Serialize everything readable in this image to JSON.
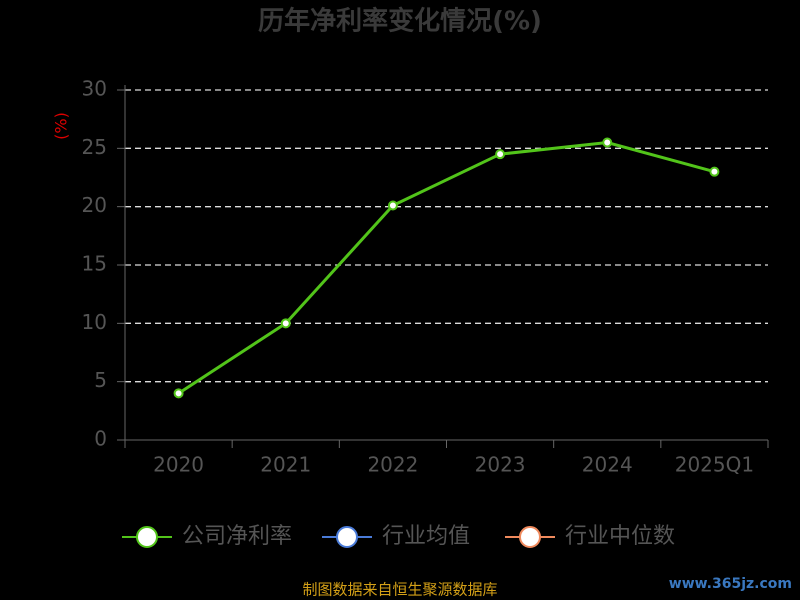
{
  "chart_data": {
    "type": "line",
    "title": "历年净利率变化情况(%)",
    "y_label": "(%)",
    "categories": [
      "2020",
      "2021",
      "2022",
      "2023",
      "2024",
      "2025Q1"
    ],
    "series": [
      {
        "name": "公司净利率",
        "color": "#52c41a",
        "values": [
          4.0,
          10.0,
          20.1,
          24.5,
          25.5,
          23.0
        ]
      },
      {
        "name": "行业均值",
        "color": "#4a7bd8",
        "values": [
          null,
          null,
          null,
          null,
          null,
          null
        ]
      },
      {
        "name": "行业中位数",
        "color": "#f08a5d",
        "values": [
          null,
          null,
          null,
          null,
          null,
          null
        ]
      }
    ],
    "ylim": [
      0,
      30
    ],
    "yticks": [
      0,
      5,
      10,
      15,
      20,
      25,
      30
    ],
    "grid": true,
    "legend": "bottom",
    "source": "制图数据来自恒生聚源数据库",
    "watermark": "www.365jz.com"
  }
}
